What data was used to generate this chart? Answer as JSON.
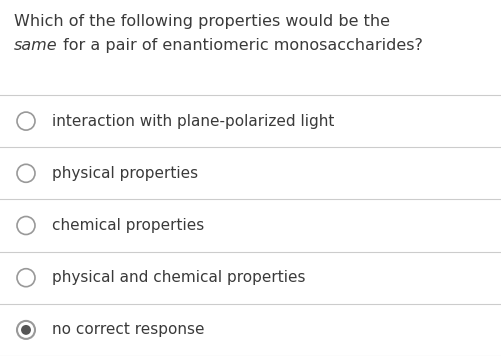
{
  "background_color": "#ffffff",
  "title_line1": "Which of the following properties would be the",
  "title_line2_italic": "same",
  "title_line2_rest": " for a pair of enantiomeric monosaccharides?",
  "options": [
    "interaction with plane-polarized light",
    "physical properties",
    "chemical properties",
    "physical and chemical properties",
    "no correct response"
  ],
  "selected_index": 4,
  "text_color": "#3a3a3a",
  "circle_color": "#999999",
  "line_color": "#cccccc",
  "selected_fill": "#555555",
  "font_size_title": 11.5,
  "font_size_options": 11.0
}
